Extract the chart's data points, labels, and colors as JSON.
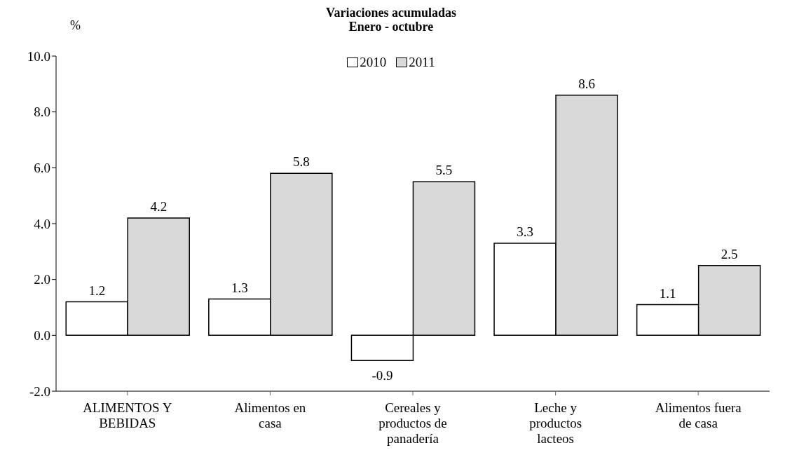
{
  "chart_data": {
    "type": "bar",
    "title": "Variaciones acumuladas",
    "subtitle": "Enero - octubre",
    "ylabel": "%",
    "categories": [
      "ALIMENTOS Y BEBIDAS",
      "Alimentos en casa",
      "Cereales y productos de panadería",
      "Leche y productos lacteos",
      "Alimentos fuera de casa"
    ],
    "series": [
      {
        "name": "2010",
        "color": "#ffffff",
        "values": [
          1.2,
          1.3,
          -0.9,
          3.3,
          1.1
        ]
      },
      {
        "name": "2011",
        "color": "#d9d9d9",
        "values": [
          4.2,
          5.8,
          5.5,
          8.6,
          2.5
        ]
      }
    ],
    "ylim": [
      -2,
      10
    ],
    "yticks": [
      {
        "value": -2,
        "label": "-2.0"
      },
      {
        "value": 0,
        "label": "0.0"
      },
      {
        "value": 2,
        "label": "2.0"
      },
      {
        "value": 4,
        "label": "4.0"
      },
      {
        "value": 6,
        "label": "6.0"
      },
      {
        "value": 8,
        "label": "8.0"
      },
      {
        "value": 10,
        "label": "10.0"
      }
    ],
    "data_labels": true,
    "legend": "top",
    "grid": false
  }
}
